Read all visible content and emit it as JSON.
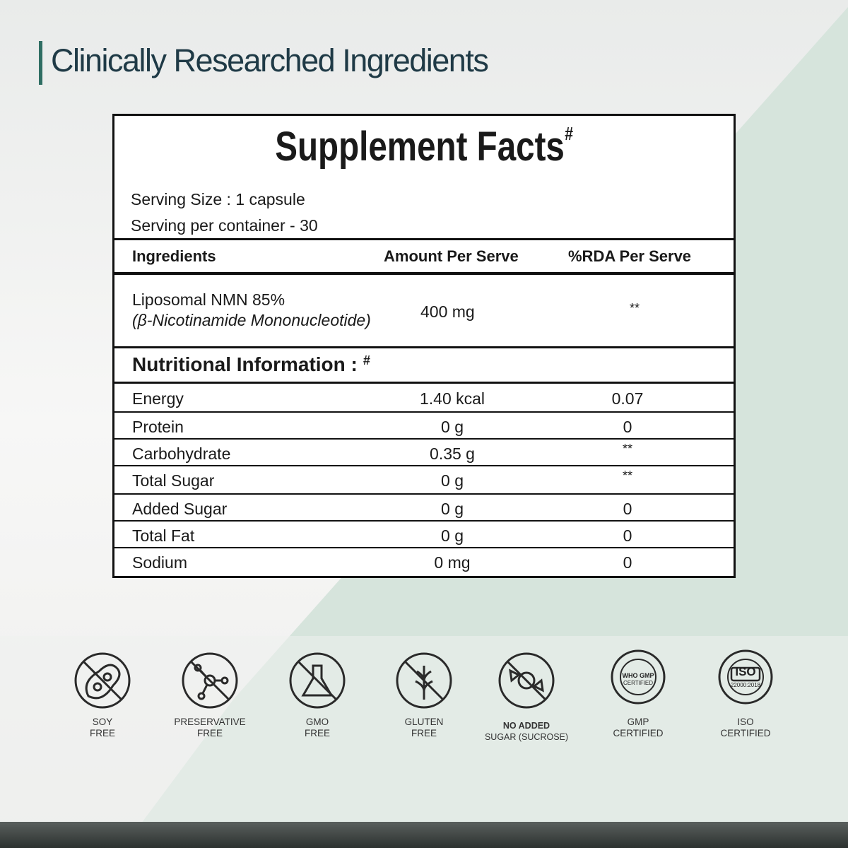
{
  "header": {
    "title": "Clinically Researched Ingredients"
  },
  "facts": {
    "title": "Supplement Facts",
    "title_mark": "#",
    "serving": [
      "Serving Size : 1 capsule",
      "Serving per container - 30"
    ],
    "headers": [
      "Ingredients",
      "Amount Per Serve",
      "%RDA Per Serve"
    ],
    "ingredient": {
      "name": "Liposomal NMN 85%",
      "subname": "(β-Nicotinamide Mononucleotide)",
      "amount": "400 mg",
      "rda": "**"
    },
    "nutrition": {
      "title": "Nutritional Information :",
      "mark": "#",
      "rows": [
        [
          "Energy",
          "1.40 kcal",
          "0.07"
        ],
        [
          "Protein",
          "0 g",
          "0"
        ],
        [
          "Carbohydrate",
          "0.35 g",
          "**"
        ],
        [
          "Total Sugar",
          "0 g",
          "**"
        ],
        [
          "Added Sugar",
          "0 g",
          "0"
        ],
        [
          "Total Fat",
          "0 g",
          "0"
        ],
        [
          "Sodium",
          "0 mg",
          "0"
        ]
      ]
    }
  },
  "badges": [
    {
      "lines": [
        "SOY",
        "FREE"
      ]
    },
    {
      "lines": [
        "PRESERVATIVE",
        "FREE"
      ]
    },
    {
      "lines": [
        "GMO",
        "FREE"
      ]
    },
    {
      "lines": [
        "GLUTEN",
        "FREE"
      ]
    },
    {
      "lines": [
        "NO ADDED",
        "SUGAR (SUCROSE)"
      ]
    },
    {
      "lines": [
        "GMP",
        "CERTIFIED"
      ],
      "seal": [
        "WHO GMP",
        "CERTIFIED"
      ]
    },
    {
      "lines": [
        "ISO",
        "CERTIFIED"
      ],
      "seal": [
        "ISO",
        "22000:2018"
      ]
    }
  ]
}
